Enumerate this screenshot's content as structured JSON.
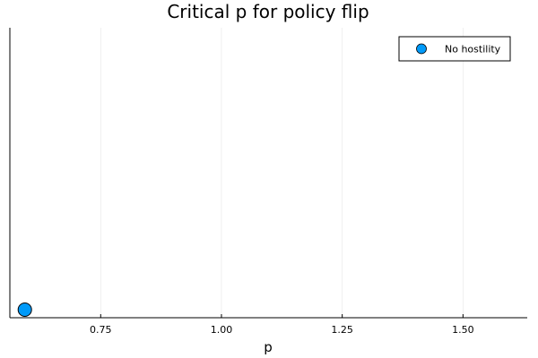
{
  "chart_data": {
    "type": "scatter",
    "title": "Critical p for policy flip",
    "xlabel": "p",
    "ylabel": "",
    "xlim": [
      0.562,
      1.633
    ],
    "ylim": [
      0,
      1
    ],
    "xticks": [
      0.75,
      1.0,
      1.25,
      1.5
    ],
    "xtick_labels": [
      "0.75",
      "1.00",
      "1.25",
      "1.50"
    ],
    "grid": true,
    "legend_position": "top-right",
    "series": [
      {
        "name": "No hostility",
        "color": "#009af9",
        "points": [
          {
            "x": 0.593,
            "y": 0.0
          }
        ]
      }
    ]
  }
}
